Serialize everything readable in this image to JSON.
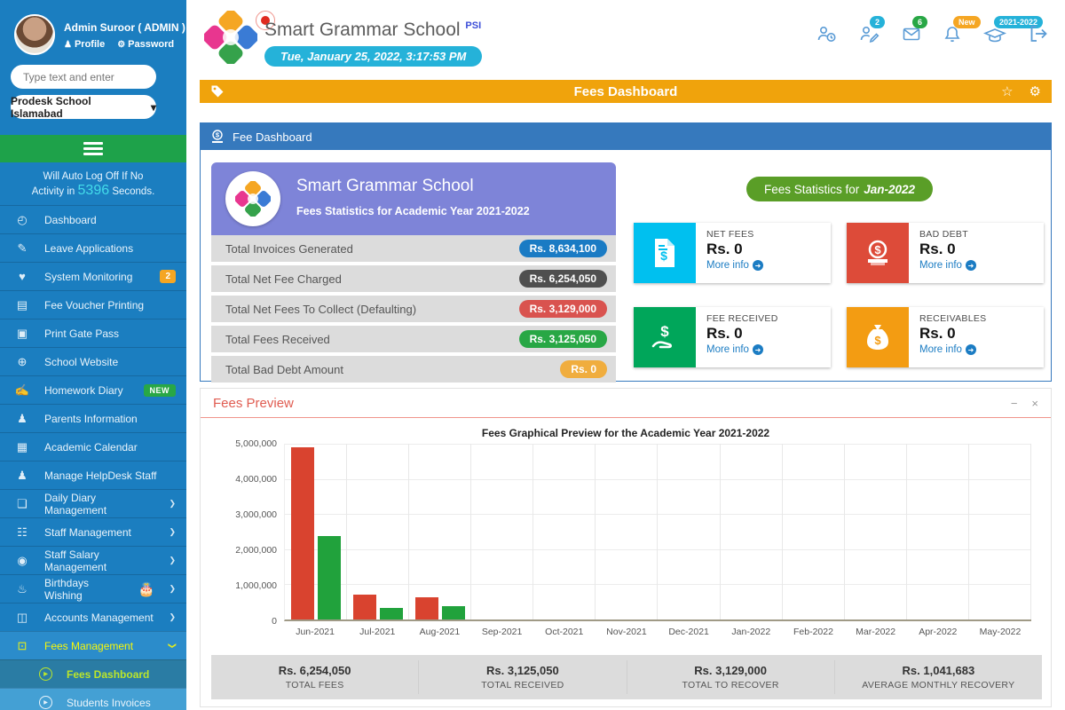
{
  "sidebar": {
    "user": {
      "name": "Admin Suroor ( ADMIN )",
      "profile": "Profile",
      "password": "Password"
    },
    "search_placeholder": "Type text and enter",
    "school_select": "Prodesk School Islamabad",
    "autolog": {
      "line1": "Will Auto Log Off If No",
      "prefix": "Activity in",
      "seconds": "5396",
      "suffix": "Seconds."
    },
    "items": [
      {
        "label": "Dashboard"
      },
      {
        "label": "Leave Applications"
      },
      {
        "label": "System Monitoring",
        "badge": "2"
      },
      {
        "label": "Fee Voucher Printing"
      },
      {
        "label": "Print Gate Pass"
      },
      {
        "label": "School Website"
      },
      {
        "label": "Homework Diary",
        "badge": "NEW"
      },
      {
        "label": "Parents Information"
      },
      {
        "label": "Academic Calendar"
      },
      {
        "label": "Manage HelpDesk Staff"
      },
      {
        "label": "Daily Diary Management"
      },
      {
        "label": "Staff Management"
      },
      {
        "label": "Staff Salary Management"
      },
      {
        "label": "Birthdays Wishing"
      },
      {
        "label": "Accounts Management"
      },
      {
        "label": "Fees Management"
      }
    ],
    "subitems": [
      {
        "label": "Fees Dashboard"
      },
      {
        "label": "Students Invoices"
      }
    ]
  },
  "header": {
    "school_name": "Smart Grammar School",
    "school_suffix": "PSI",
    "datetime": "Tue, January 25, 2022, 3:17:53 PM",
    "badges": {
      "user_edit": "2",
      "mail": "6",
      "bell": "New",
      "session": "2021-2022"
    }
  },
  "title_bar": {
    "title": "Fees Dashboard",
    "star": "☆",
    "gear": "⚙"
  },
  "fee_panel": {
    "header": "Fee Dashboard",
    "card": {
      "title": "Smart Grammar School",
      "subtitle": "Fees Statistics for Academic Year 2021-2022"
    },
    "summary_rows": [
      {
        "label": "Total Invoices Generated",
        "value": "Rs. 8,634,100",
        "color": "#1a7bc4"
      },
      {
        "label": "Total Net Fee Charged",
        "value": "Rs. 6,254,050",
        "color": "#4f4f4f"
      },
      {
        "label": "Total Net Fees To Collect (Defaulting)",
        "value": "Rs. 3,129,000",
        "color": "#d9534f"
      },
      {
        "label": "Total Fees Received",
        "value": "Rs. 3,125,050",
        "color": "#28a745"
      },
      {
        "label": "Total Bad Debt Amount",
        "value": "Rs. 0",
        "color": "#f0ad3e"
      }
    ],
    "stats_pill": {
      "prefix": "Fees Statistics for",
      "month": "Jan-2022",
      "color": "#5a9e27"
    },
    "info_boxes": [
      {
        "label": "NET FEES",
        "value": "Rs. 0",
        "more": "More info",
        "color": "#00c0ef"
      },
      {
        "label": "BAD DEBT",
        "value": "Rs. 0",
        "more": "More info",
        "color": "#dd4b39"
      },
      {
        "label": "FEE RECEIVED",
        "value": "Rs. 0",
        "more": "More info",
        "color": "#00a65a"
      },
      {
        "label": "RECEIVABLES",
        "value": "Rs. 0",
        "more": "More info",
        "color": "#f39c12"
      }
    ]
  },
  "fees_preview": {
    "title": "Fees Preview",
    "controls": {
      "minimize": "−",
      "close": "×"
    },
    "footer": [
      {
        "value": "Rs. 6,254,050",
        "label": "TOTAL FEES"
      },
      {
        "value": "Rs. 3,125,050",
        "label": "TOTAL RECEIVED"
      },
      {
        "value": "Rs. 3,129,000",
        "label": "TOTAL TO RECOVER"
      },
      {
        "value": "Rs. 1,041,683",
        "label": "AVERAGE MONTHLY RECOVERY"
      }
    ]
  },
  "chart_data": {
    "type": "bar",
    "title": "Fees Graphical Preview for the Academic Year 2021-2022",
    "categories": [
      "Jun-2021",
      "Jul-2021",
      "Aug-2021",
      "Sep-2021",
      "Oct-2021",
      "Nov-2021",
      "Dec-2021",
      "Jan-2022",
      "Feb-2022",
      "Mar-2022",
      "Apr-2022",
      "May-2022"
    ],
    "series": [
      {
        "name": "red",
        "color": "#d9432f",
        "values": [
          4900000,
          700000,
          630000,
          0,
          0,
          0,
          0,
          0,
          0,
          0,
          0,
          0
        ]
      },
      {
        "name": "green",
        "color": "#21a23c",
        "values": [
          2380000,
          330000,
          380000,
          0,
          0,
          0,
          0,
          0,
          0,
          0,
          0,
          0
        ]
      }
    ],
    "ylim": [
      0,
      5000000
    ],
    "yticks": [
      "5,000,000",
      "4,000,000",
      "3,000,000",
      "2,000,000",
      "1,000,000",
      "0"
    ],
    "grid": true,
    "legend": "none"
  }
}
